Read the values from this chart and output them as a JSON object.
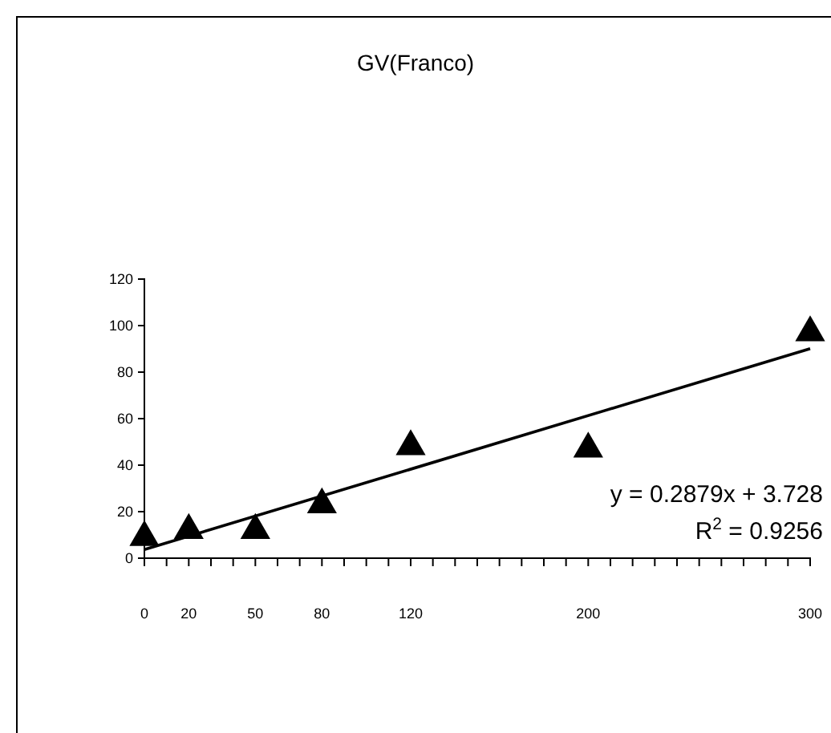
{
  "chart_data": {
    "type": "scatter",
    "title": "GV(Franco)",
    "series": [
      {
        "type": "scatter",
        "color": "#000000",
        "marker": "triangle",
        "x": [
          0,
          20,
          50,
          80,
          120,
          200,
          300
        ],
        "values": [
          9,
          12,
          12,
          23,
          48,
          47,
          97
        ]
      },
      {
        "type": "line",
        "color": "#000000",
        "marker": "none",
        "x": [
          0,
          300
        ],
        "values": [
          3.7,
          90.1
        ]
      }
    ],
    "xlim": [
      0,
      300
    ],
    "xticks": [
      {
        "value": 0,
        "label": "0"
      },
      {
        "value": 10,
        "label": null
      },
      {
        "value": 20,
        "label": "20"
      },
      {
        "value": 30,
        "label": null
      },
      {
        "value": 40,
        "label": null
      },
      {
        "value": 50,
        "label": "50"
      },
      {
        "value": 60,
        "label": null
      },
      {
        "value": 70,
        "label": null
      },
      {
        "value": 80,
        "label": "80"
      },
      {
        "value": 90,
        "label": null
      },
      {
        "value": 100,
        "label": null
      },
      {
        "value": 110,
        "label": null
      },
      {
        "value": 120,
        "label": "120"
      },
      {
        "value": 130,
        "label": null
      },
      {
        "value": 140,
        "label": null
      },
      {
        "value": 150,
        "label": null
      },
      {
        "value": 160,
        "label": null
      },
      {
        "value": 170,
        "label": null
      },
      {
        "value": 180,
        "label": null
      },
      {
        "value": 190,
        "label": null
      },
      {
        "value": 200,
        "label": "200"
      },
      {
        "value": 210,
        "label": null
      },
      {
        "value": 220,
        "label": null
      },
      {
        "value": 230,
        "label": null
      },
      {
        "value": 240,
        "label": null
      },
      {
        "value": 250,
        "label": null
      },
      {
        "value": 260,
        "label": null
      },
      {
        "value": 270,
        "label": null
      },
      {
        "value": 280,
        "label": null
      },
      {
        "value": 290,
        "label": null
      },
      {
        "value": 300,
        "label": "300"
      }
    ],
    "ylim": [
      0,
      120
    ],
    "yticks": [
      0,
      20,
      40,
      60,
      80,
      100,
      120
    ],
    "grid": false,
    "annotations": [
      "y = 0.2879x + 3.728",
      "R$^{2}$ = 0.9256"
    ]
  }
}
